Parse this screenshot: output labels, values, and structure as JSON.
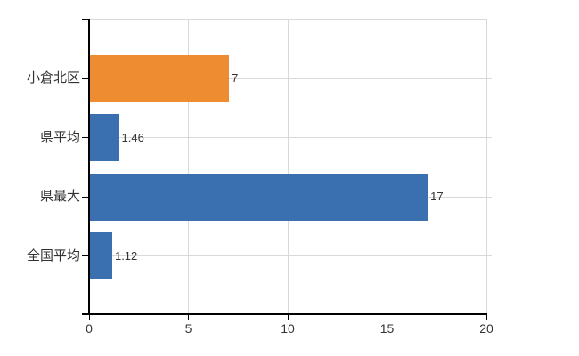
{
  "chart_data": {
    "type": "bar",
    "orientation": "horizontal",
    "title": "",
    "xlabel": "",
    "ylabel": "",
    "categories": [
      "小倉北区",
      "県平均",
      "県最大",
      "全国平均"
    ],
    "values": [
      7,
      1.46,
      17,
      1.12
    ],
    "value_labels": [
      "7",
      "1.46",
      "17",
      "1.12"
    ],
    "bar_colors": [
      "#EE8C32",
      "#3A70B0",
      "#3A70B0",
      "#3A70B0"
    ],
    "x_ticks": [
      0,
      5,
      10,
      15,
      20
    ],
    "x_tick_labels": [
      "0",
      "5",
      "10",
      "15",
      "20"
    ],
    "xlim": [
      0,
      20
    ],
    "grid": "on",
    "legend": "none",
    "grid_color": "#D9D9D9",
    "axis_color": "#000000",
    "text_color": "#333333",
    "background": "#FFFFFF"
  }
}
